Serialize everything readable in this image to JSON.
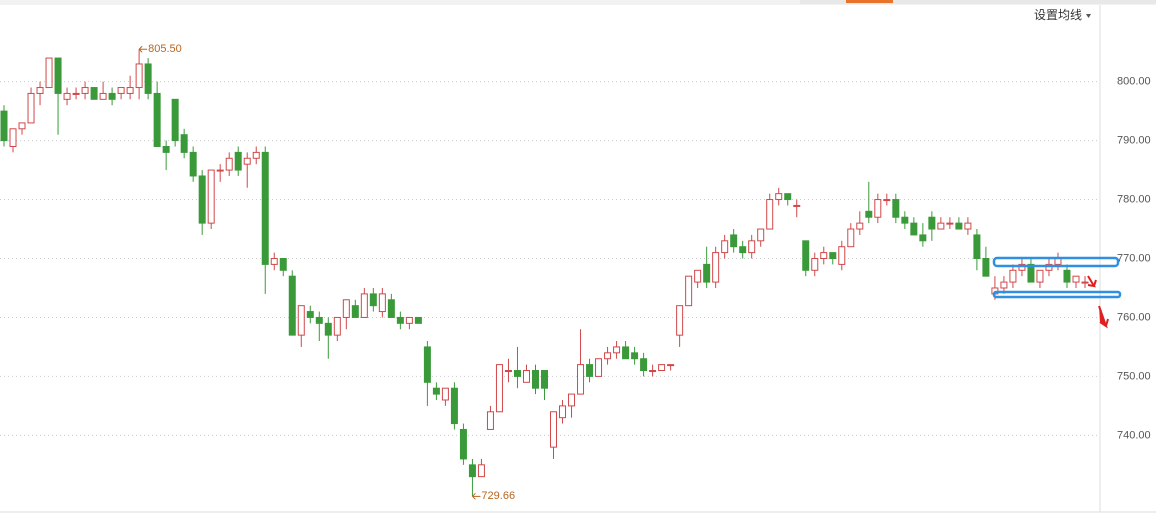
{
  "settings_button": "设置均线",
  "chart_data": {
    "type": "candlestick",
    "up_color": "#d0484a",
    "down_color": "#3a9a3a",
    "ylim": [
      727,
      813
    ],
    "yticks": [
      {
        "value": 740,
        "label": "740.00"
      },
      {
        "value": 750,
        "label": "750.00"
      },
      {
        "value": 760,
        "label": "760.00"
      },
      {
        "value": 770,
        "label": "770.00"
      },
      {
        "value": 780,
        "label": "780.00"
      },
      {
        "value": 790,
        "label": "790.00"
      },
      {
        "value": 800,
        "label": "800.00"
      }
    ],
    "grid": true,
    "max_label": "805.50",
    "min_label": "729.66",
    "open": [
      795,
      789,
      792,
      793,
      798,
      799,
      804,
      797,
      798,
      798,
      799,
      797,
      798,
      798,
      798,
      799,
      803,
      798,
      789,
      797,
      791,
      788,
      784,
      776,
      785,
      785,
      788,
      786,
      787,
      788,
      769,
      770,
      767,
      757,
      761,
      760,
      759,
      757,
      760,
      762,
      760,
      764,
      761,
      763,
      760,
      759,
      760,
      755,
      748,
      746,
      748,
      741,
      735,
      733,
      741,
      744,
      751,
      751,
      749,
      751,
      751,
      738,
      743,
      745,
      747,
      752,
      750,
      753,
      754,
      755,
      754,
      753,
      751,
      751,
      752,
      757,
      762,
      766,
      769,
      766,
      771,
      774,
      772,
      771,
      773,
      775,
      780,
      781,
      779,
      773,
      768,
      770,
      771,
      769,
      772,
      775,
      778,
      777,
      780,
      780,
      777,
      776,
      774,
      777,
      775,
      776,
      776,
      775,
      774,
      770,
      764,
      765,
      766,
      768,
      769,
      766,
      768,
      769,
      768,
      766,
      766
    ],
    "high": [
      796,
      792,
      793,
      799,
      800,
      804,
      804,
      799,
      799,
      800,
      799,
      800,
      799,
      799,
      801,
      805.5,
      804,
      800,
      790,
      797,
      792,
      789,
      785,
      785,
      786,
      788,
      789,
      788,
      789,
      789,
      771,
      770,
      768,
      762,
      762,
      761,
      760,
      760,
      763,
      763,
      765,
      765,
      765,
      764,
      761,
      760,
      760,
      756,
      749,
      748,
      749,
      742,
      736,
      736,
      745,
      752,
      753,
      755,
      752,
      752,
      751,
      744,
      746,
      747,
      758,
      753,
      753,
      755,
      756,
      756,
      755,
      754,
      752,
      752,
      752,
      762,
      767,
      768,
      772,
      772,
      774,
      775,
      773,
      774,
      775,
      781,
      782,
      781,
      780,
      773,
      771,
      772,
      771,
      773,
      776,
      778,
      783,
      781,
      781,
      781,
      778,
      777,
      776,
      778,
      777,
      777,
      777,
      777,
      775,
      772,
      767,
      767,
      769,
      770,
      770,
      768,
      770,
      771,
      769,
      767,
      767
    ],
    "low": [
      789,
      788,
      791,
      793,
      796,
      799,
      791,
      796,
      797,
      797,
      797,
      797,
      796,
      797,
      797,
      797,
      797,
      789,
      785,
      789,
      787,
      783,
      774,
      775,
      783,
      784,
      784,
      782,
      786,
      764,
      768,
      767,
      757,
      755,
      759,
      756,
      753,
      756,
      758,
      760,
      760,
      761,
      760,
      760,
      758,
      758,
      759,
      745,
      746,
      745,
      741,
      735,
      729.66,
      733,
      741,
      744,
      749,
      748,
      749,
      747,
      746,
      736,
      742,
      743,
      747,
      749,
      750,
      752,
      753,
      753,
      752,
      750,
      750,
      751,
      751,
      755,
      762,
      765,
      765,
      765,
      770,
      771,
      770,
      770,
      772,
      775,
      779,
      779,
      777,
      767,
      767,
      769,
      769,
      768,
      772,
      774,
      776,
      776,
      779,
      776,
      775,
      774,
      772,
      773,
      775,
      775,
      775,
      774,
      768,
      767,
      763,
      764,
      765,
      767,
      766,
      765,
      767,
      768,
      765,
      765,
      765
    ],
    "close": [
      790,
      792,
      793,
      798,
      799,
      804,
      798,
      798,
      798,
      799,
      797,
      798,
      797,
      799,
      799,
      803,
      798,
      789,
      788,
      790,
      788,
      784,
      776,
      785,
      785,
      787,
      785,
      787,
      788,
      769,
      770,
      768,
      757,
      762,
      760,
      759,
      757,
      760,
      763,
      760,
      764,
      762,
      764,
      760,
      759,
      760,
      759,
      749,
      747,
      748,
      742,
      736,
      733,
      735,
      744,
      752,
      751,
      750,
      751,
      748,
      748,
      744,
      745,
      747,
      752,
      750,
      753,
      754,
      755,
      753,
      753,
      751,
      751,
      752,
      752,
      762,
      767,
      768,
      766,
      771,
      773,
      772,
      771,
      773,
      775,
      780,
      781,
      780,
      779,
      768,
      770,
      771,
      770,
      772,
      775,
      776,
      777,
      780,
      780,
      777,
      776,
      774,
      773,
      775,
      776,
      776,
      775,
      776,
      770,
      767,
      765,
      766,
      768,
      769,
      766,
      768,
      769,
      770,
      766,
      767,
      766
    ]
  }
}
